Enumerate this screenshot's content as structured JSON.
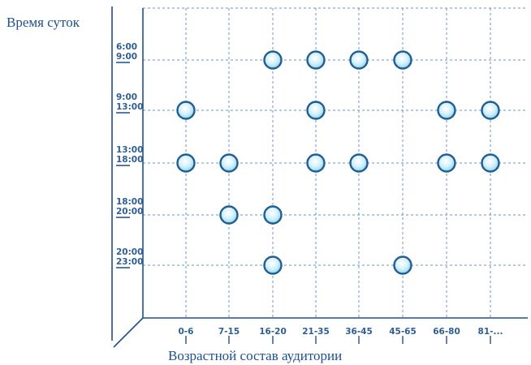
{
  "chart_data": {
    "type": "scatter",
    "xlabel": "Возрастной состав аудитории",
    "ylabel": "Время суток",
    "x_categories": [
      "0-6",
      "7-15",
      "16-20",
      "21-35",
      "36-45",
      "45-65",
      "66-80",
      "81-..."
    ],
    "y_categories": [
      [
        "6:00",
        "9:00"
      ],
      [
        "9:00",
        "13:00"
      ],
      [
        "13:00",
        "18:00"
      ],
      [
        "18:00",
        "20:00"
      ],
      [
        "20:00",
        "23:00"
      ]
    ],
    "points": [
      {
        "x": "16-20",
        "y": "6:00-9:00"
      },
      {
        "x": "21-35",
        "y": "6:00-9:00"
      },
      {
        "x": "36-45",
        "y": "6:00-9:00"
      },
      {
        "x": "45-65",
        "y": "6:00-9:00"
      },
      {
        "x": "0-6",
        "y": "9:00-13:00"
      },
      {
        "x": "21-35",
        "y": "9:00-13:00"
      },
      {
        "x": "66-80",
        "y": "9:00-13:00"
      },
      {
        "x": "81-...",
        "y": "9:00-13:00"
      },
      {
        "x": "0-6",
        "y": "13:00-18:00"
      },
      {
        "x": "7-15",
        "y": "13:00-18:00"
      },
      {
        "x": "21-35",
        "y": "13:00-18:00"
      },
      {
        "x": "36-45",
        "y": "13:00-18:00"
      },
      {
        "x": "66-80",
        "y": "13:00-18:00"
      },
      {
        "x": "81-...",
        "y": "13:00-18:00"
      },
      {
        "x": "7-15",
        "y": "18:00-20:00"
      },
      {
        "x": "16-20",
        "y": "18:00-20:00"
      },
      {
        "x": "16-20",
        "y": "20:00-23:00"
      },
      {
        "x": "45-65",
        "y": "20:00-23:00"
      }
    ],
    "grid": true,
    "colors": {
      "axis": "#1f4f8c",
      "grid": "#6b95c4",
      "marker_fill": "#d9f3fb",
      "marker_stroke": "#1f5d92"
    }
  }
}
